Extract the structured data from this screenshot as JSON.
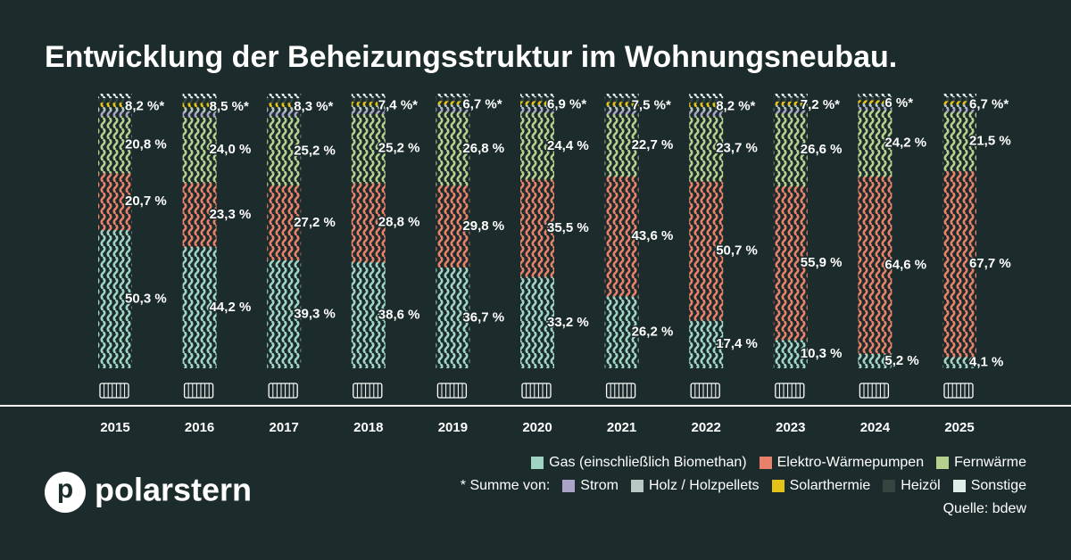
{
  "chart_data": {
    "type": "stacked_bar",
    "title": "Entwicklung der Beheizungsstruktur im Wohnungsneubau.",
    "categories": [
      "2015",
      "2016",
      "2017",
      "2018",
      "2019",
      "2020",
      "2021",
      "2022",
      "2023",
      "2024",
      "2025"
    ],
    "ylim": [
      0,
      100
    ],
    "series": [
      {
        "name": "Gas (einschließlich Biomethan)",
        "color": "#9fd4c4",
        "values": [
          50.3,
          44.2,
          39.3,
          38.6,
          36.7,
          33.2,
          26.2,
          17.4,
          10.3,
          5.2,
          4.1
        ],
        "value_labels": [
          "50,3 %",
          "44,2 %",
          "39,3 %",
          "38,6 %",
          "36,7 %",
          "33,2 %",
          "26,2 %",
          "17,4 %",
          "10,3 %",
          "5,2 %",
          "4,1 %"
        ]
      },
      {
        "name": "Elektro-Wärmepumpen",
        "color": "#e8806a",
        "values": [
          20.7,
          23.3,
          27.2,
          28.8,
          29.8,
          35.5,
          43.6,
          50.7,
          55.9,
          64.6,
          67.7
        ],
        "value_labels": [
          "20,7 %",
          "23,3 %",
          "27,2 %",
          "28,8 %",
          "29,8 %",
          "35,5 %",
          "43,6 %",
          "50,7 %",
          "55,9 %",
          "64,6 %",
          "67,7 %"
        ]
      },
      {
        "name": "Fernwärme",
        "color": "#b5cf8e",
        "values": [
          20.8,
          24.0,
          25.2,
          25.2,
          26.8,
          24.4,
          22.7,
          23.7,
          26.6,
          24.2,
          21.5
        ],
        "value_labels": [
          "20,8 %",
          "24,0 %",
          "25,2 %",
          "25,2 %",
          "26,8 %",
          "24,4 %",
          "22,7 %",
          "23,7 %",
          "26,6 %",
          "24,2 %",
          "21,5 %"
        ]
      }
    ],
    "other": {
      "name": "* Summe von:",
      "values": [
        8.2,
        8.5,
        8.3,
        7.4,
        6.7,
        6.9,
        7.5,
        8.2,
        7.2,
        6,
        6.7
      ],
      "value_labels": [
        "8,2 %*",
        "8,5 %*",
        "8,3 %*",
        "7,4 %*",
        "6,7 %*",
        "6,9 %*",
        "7,5 %*",
        "8,2 %*",
        "7,2 %*",
        "6 %*",
        "6,7 %*"
      ],
      "components": [
        {
          "name": "Strom",
          "color": "#a9a3c8"
        },
        {
          "name": "Holz / Holzpellets",
          "color": "#b8c8c4"
        },
        {
          "name": "Solarthermie",
          "color": "#e3c21a"
        },
        {
          "name": "Heizöl",
          "color": "#34463f"
        },
        {
          "name": "Sonstige",
          "color": "#dfeee9"
        }
      ]
    },
    "source": "Quelle: bdew",
    "brand": "polarstern",
    "logo_letter": "p"
  }
}
